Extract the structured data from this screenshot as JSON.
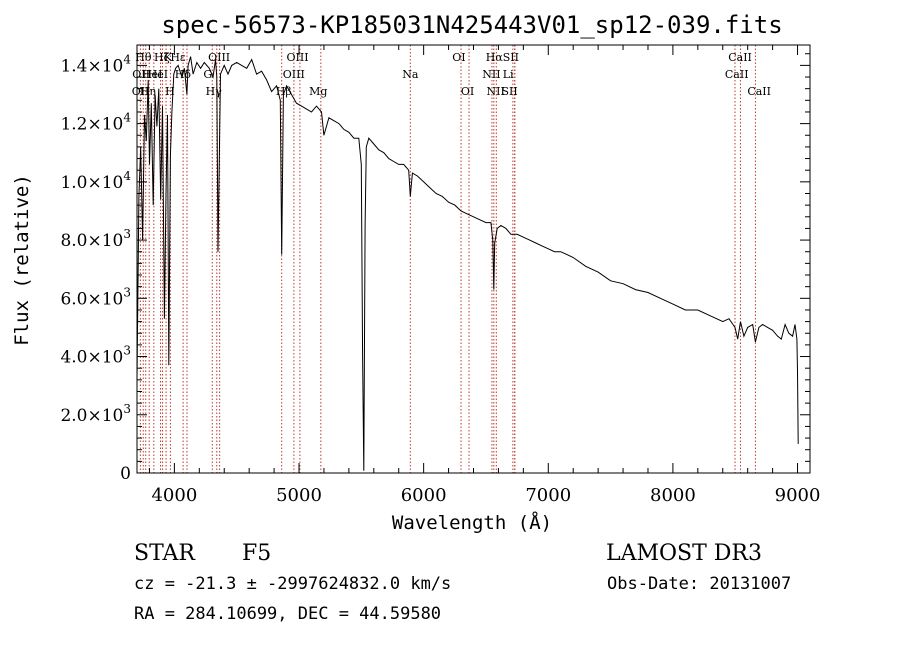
{
  "chart_data": {
    "type": "line",
    "title": "spec-56573-KP185031N425443V01_sp12-039.fits",
    "xlabel": "Wavelength (Å)",
    "ylabel": "Flux (relative)",
    "xlim": [
      3700,
      9100
    ],
    "ylim": [
      0,
      14700
    ],
    "grid": false,
    "x_ticks": [
      {
        "value": 4000,
        "label": "4000"
      },
      {
        "value": 5000,
        "label": "5000"
      },
      {
        "value": 6000,
        "label": "6000"
      },
      {
        "value": 7000,
        "label": "7000"
      },
      {
        "value": 8000,
        "label": "8000"
      },
      {
        "value": 9000,
        "label": "9000"
      }
    ],
    "y_ticks": [
      {
        "value": 0,
        "mant": "0",
        "exp": ""
      },
      {
        "value": 2000,
        "mant": "2.0×10",
        "exp": "3"
      },
      {
        "value": 4000,
        "mant": "4.0×10",
        "exp": "3"
      },
      {
        "value": 6000,
        "mant": "6.0×10",
        "exp": "3"
      },
      {
        "value": 8000,
        "mant": "8.0×10",
        "exp": "3"
      },
      {
        "value": 10000,
        "mant": "1.0×10",
        "exp": "4"
      },
      {
        "value": 12000,
        "mant": "1.2×10",
        "exp": "4"
      },
      {
        "value": 14000,
        "mant": "1.4×10",
        "exp": "4"
      }
    ],
    "series": [
      {
        "name": "spectrum",
        "x": [
          3700,
          3715,
          3730,
          3745,
          3760,
          3775,
          3790,
          3800,
          3815,
          3830,
          3845,
          3860,
          3875,
          3890,
          3905,
          3920,
          3933,
          3945,
          3955,
          3968,
          3980,
          3995,
          4010,
          4030,
          4060,
          4080,
          4100,
          4110,
          4130,
          4150,
          4180,
          4210,
          4240,
          4280,
          4310,
          4330,
          4340,
          4350,
          4370,
          4400,
          4430,
          4460,
          4500,
          4540,
          4580,
          4620,
          4660,
          4700,
          4740,
          4780,
          4820,
          4850,
          4861,
          4875,
          4900,
          4940,
          4980,
          5020,
          5060,
          5100,
          5140,
          5180,
          5200,
          5240,
          5280,
          5320,
          5360,
          5400,
          5440,
          5480,
          5500,
          5510,
          5520,
          5530,
          5540,
          5560,
          5600,
          5640,
          5680,
          5720,
          5760,
          5800,
          5840,
          5880,
          5893,
          5910,
          5950,
          6000,
          6050,
          6100,
          6150,
          6200,
          6250,
          6300,
          6350,
          6400,
          6450,
          6500,
          6540,
          6555,
          6563,
          6570,
          6590,
          6620,
          6660,
          6700,
          6750,
          6800,
          6850,
          6900,
          6950,
          7000,
          7050,
          7100,
          7150,
          7200,
          7300,
          7400,
          7500,
          7600,
          7700,
          7800,
          7900,
          8000,
          8100,
          8200,
          8300,
          8400,
          8450,
          8498,
          8520,
          8542,
          8570,
          8600,
          8640,
          8662,
          8690,
          8720,
          8760,
          8800,
          8840,
          8870,
          8900,
          8930,
          8960,
          8980,
          8995,
          9000,
          9005
        ],
        "y": [
          3200,
          9500,
          11200,
          8000,
          12300,
          11400,
          13500,
          10600,
          12700,
          9200,
          13000,
          11900,
          13200,
          9400,
          12600,
          5300,
          9600,
          12300,
          3700,
          10900,
          12400,
          13700,
          13900,
          14000,
          13600,
          13900,
          13000,
          14000,
          14300,
          13700,
          14100,
          13900,
          14100,
          13900,
          13600,
          14200,
          13600,
          7600,
          13700,
          14000,
          13700,
          14000,
          14100,
          14000,
          13900,
          14200,
          13700,
          13800,
          13500,
          13100,
          13300,
          12800,
          7500,
          13000,
          13300,
          13000,
          12700,
          12600,
          12500,
          12400,
          12600,
          12400,
          11600,
          12200,
          12100,
          12000,
          11800,
          11700,
          11500,
          11500,
          10600,
          4000,
          80,
          8500,
          11200,
          11500,
          11300,
          11100,
          11000,
          10800,
          10700,
          10600,
          10600,
          10400,
          9500,
          10300,
          10200,
          10000,
          9800,
          9600,
          9500,
          9300,
          9200,
          9000,
          8900,
          8800,
          8700,
          8600,
          8600,
          8000,
          6300,
          7900,
          8400,
          8500,
          8400,
          8200,
          8200,
          8100,
          8000,
          7900,
          7800,
          7700,
          7600,
          7600,
          7500,
          7400,
          7100,
          6900,
          6600,
          6500,
          6300,
          6200,
          6000,
          5800,
          5600,
          5600,
          5400,
          5200,
          5300,
          5000,
          4600,
          5200,
          4700,
          5000,
          5100,
          4500,
          5000,
          5100,
          5000,
          4900,
          4700,
          4600,
          5100,
          4800,
          4700,
          5100,
          4600,
          3500,
          1000
        ]
      }
    ],
    "line_markers": [
      {
        "x": 3727,
        "label": "OII",
        "row": 2,
        "label_x": 3729
      },
      {
        "x": 3750,
        "label": "Hθ",
        "row": 0,
        "label_x": 3751
      },
      {
        "x": 3770,
        "label": "OII",
        "row": 1,
        "label_x": 3733
      },
      {
        "x": 3798,
        "label": "Hη",
        "row": 2,
        "label_x": 3787
      },
      {
        "x": 3835,
        "label": "HeI",
        "row": 1,
        "label_x": 3822
      },
      {
        "x": 3889,
        "label": "HeI",
        "row": 1,
        "label_x": 3868
      },
      {
        "x": 3905,
        "label": "Hζ",
        "row": 0,
        "label_x": 3899
      },
      {
        "x": 3933,
        "label": "K",
        "row": 0,
        "label_x": 3950
      },
      {
        "x": 3968,
        "label": "H",
        "row": 2,
        "label_x": 3964
      },
      {
        "x": 4070,
        "label": "Hε",
        "row": 0,
        "label_x": 4029
      },
      {
        "x": 4101,
        "label": "Hδ",
        "row": 1,
        "label_x": 4068
      },
      {
        "x": 4304,
        "label": "G",
        "row": 1,
        "label_x": 4268
      },
      {
        "x": 4340,
        "label": "OIII",
        "row": 0,
        "label_x": 4359
      },
      {
        "x": 4363,
        "label": "Hγ",
        "row": 2,
        "label_x": 4316
      },
      {
        "x": 4861,
        "label": "OIII",
        "row": 0,
        "label_x": 4988
      },
      {
        "x": 4959,
        "label": "OIII",
        "row": 1,
        "label_x": 4958
      },
      {
        "x": 5007,
        "label": "Hβ",
        "row": 2,
        "label_x": 4878
      },
      {
        "x": 5175,
        "label": "Mg",
        "row": 2,
        "label_x": 5155
      },
      {
        "x": 5893,
        "label": "Na",
        "row": 1,
        "label_x": 5893
      },
      {
        "x": 6300,
        "label": "OI",
        "row": 0,
        "label_x": 6283
      },
      {
        "x": 6364,
        "label": "OI",
        "row": 2,
        "label_x": 6352
      },
      {
        "x": 6548,
        "label": "NII",
        "row": 1,
        "label_x": 6544
      },
      {
        "x": 6563,
        "label": "Hα",
        "row": 0,
        "label_x": 6567
      },
      {
        "x": 6583,
        "label": "NII",
        "row": 2,
        "label_x": 6578
      },
      {
        "x": 6716,
        "label": "SII",
        "row": 0,
        "label_x": 6700
      },
      {
        "x": 6731,
        "label": "Li",
        "row": 1,
        "label_x": 6678
      },
      {
        "x": 6731,
        "label": "SII",
        "row": 2,
        "label_x": 6690
      },
      {
        "x": 8498,
        "label": "CaII",
        "row": 1,
        "label_x": 8512
      },
      {
        "x": 8542,
        "label": "CaII",
        "row": 0,
        "label_x": 8539
      },
      {
        "x": 8662,
        "label": "CaII",
        "row": 2,
        "label_x": 8692
      }
    ]
  },
  "footer": {
    "object_class": "STAR",
    "subclass": "F5",
    "survey": "LAMOST DR3",
    "redshift": "cz = -21.3 ± -2997624832.0 km/s",
    "obs_date": "Obs-Date: 20131007",
    "coords": "RA = 284.10699, DEC =  44.59580"
  }
}
